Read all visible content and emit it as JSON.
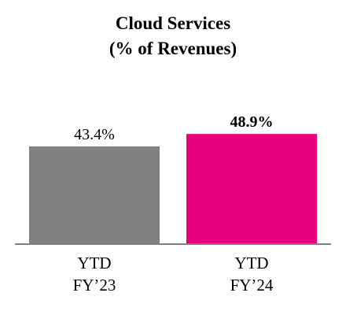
{
  "chart_data": {
    "type": "bar",
    "title_lines": [
      "Cloud Services",
      "(% of Revenues)"
    ],
    "categories": [
      [
        "YTD",
        "FY’23"
      ],
      [
        "YTD",
        "FY’24"
      ]
    ],
    "values": [
      43.4,
      48.9
    ],
    "data_labels": [
      "43.4%",
      "48.9%"
    ],
    "data_label_bold": [
      false,
      true
    ],
    "colors": [
      "#808080",
      "#e6007e"
    ],
    "ylim": [
      0,
      100
    ],
    "grid": false,
    "legend": "none"
  },
  "colors": {
    "baseline": "#7f7f7f",
    "text": "#000000"
  }
}
